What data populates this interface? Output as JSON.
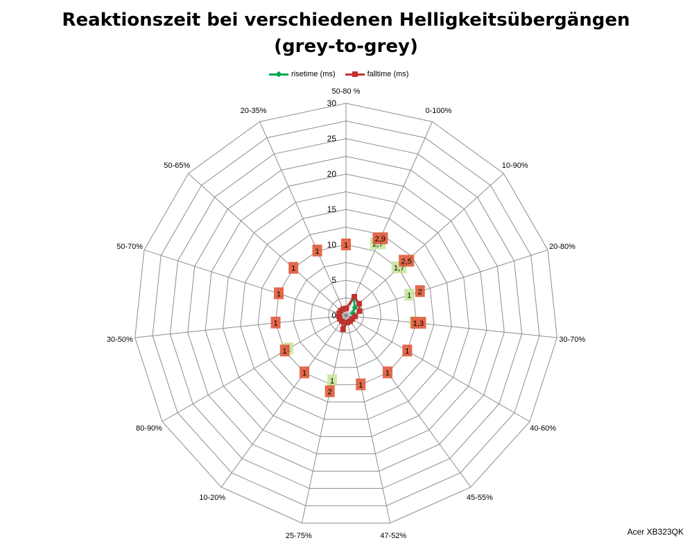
{
  "chart_data": {
    "type": "radar",
    "title": "Reaktionszeit bei verschiedenen Helligkeitsübergängen",
    "subtitle": "(grey-to-grey)",
    "categories": [
      "50-80 %",
      "0-100%",
      "10-90%",
      "20-80%",
      "30-70%",
      "40-60%",
      "45-55%",
      "47-52%",
      "25-75%",
      "10-20%",
      "80-90%",
      "30-50%",
      "50-70%",
      "50-65%",
      "20-35%"
    ],
    "r_ticks": [
      0,
      5,
      10,
      15,
      20,
      25,
      30
    ],
    "rlim": [
      0,
      30
    ],
    "grid": true,
    "legend_position": "top",
    "series": [
      {
        "name": "risetime (ms)",
        "color": "#00A651",
        "marker": "diamond",
        "values": [
          1,
          2.7,
          1.7,
          1,
          1.3,
          1,
          1,
          1,
          1,
          1,
          1,
          1,
          1,
          1,
          1
        ],
        "labels": [
          "",
          "2,7",
          "1,7",
          "1",
          "1",
          "",
          "",
          "",
          "1",
          "",
          "1",
          "",
          "",
          "",
          ""
        ],
        "label_color": "#C4E59A"
      },
      {
        "name": "falltime (ms)",
        "color": "#C0312F",
        "marker": "square",
        "values": [
          1,
          2.9,
          2.5,
          2,
          1.3,
          1,
          1,
          1,
          2,
          1,
          1,
          1,
          1,
          1,
          1
        ],
        "labels": [
          "1",
          "2,9",
          "2,5",
          "2",
          "1,3",
          "1",
          "1",
          "1",
          "2",
          "1",
          "1",
          "1",
          "1",
          "1",
          "1"
        ],
        "label_color": "#E05A3C"
      }
    ]
  },
  "footnote": "Acer XB323QK"
}
